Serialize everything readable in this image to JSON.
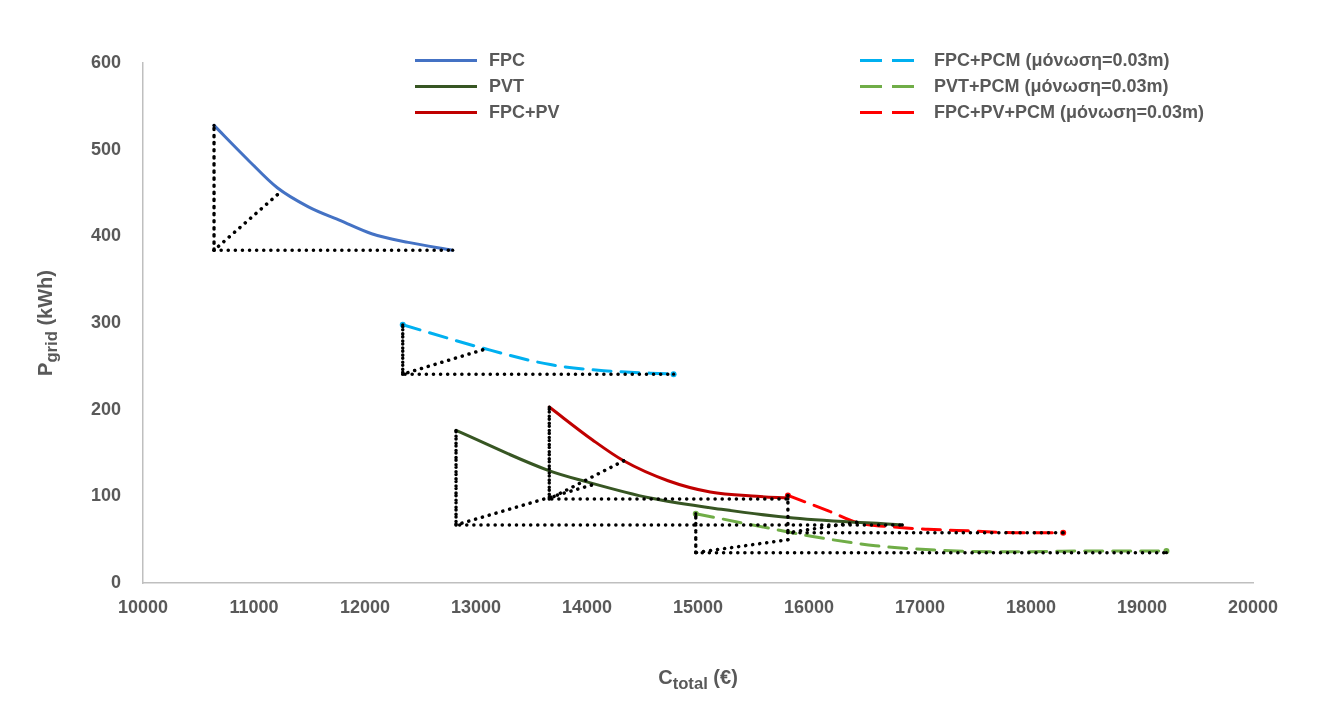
{
  "chart_data": {
    "type": "line",
    "xlabel": "C$_{total}$ (€)",
    "ylabel": "P$_{grid}$ (kWh)",
    "xlim": [
      10000,
      20000
    ],
    "xticks": [
      10000,
      11000,
      12000,
      13000,
      14000,
      15000,
      16000,
      17000,
      18000,
      19000,
      20000
    ],
    "ylim": [
      0,
      600
    ],
    "yticks": [
      0,
      100,
      200,
      300,
      400,
      500,
      600
    ],
    "grid": false,
    "legend": "top",
    "series": [
      {
        "name": "FPC",
        "color": "#4472c4",
        "line_style": "solid",
        "x": [
          10640,
          10940,
          11210,
          11490,
          11780,
          12060,
          12390,
          12790
        ],
        "values": [
          528,
          489,
          456,
          434,
          418,
          403,
          393,
          384
        ]
      },
      {
        "name": "PVT",
        "color": "#375623",
        "line_style": "solid",
        "x": [
          12820,
          13650,
          13990,
          14570,
          15210,
          15860,
          16840
        ],
        "values": [
          176,
          130,
          117,
          98,
          85,
          75,
          67
        ]
      },
      {
        "name": "FPC+PV",
        "color": "#c00000",
        "line_style": "solid",
        "x": [
          13660,
          14050,
          14330,
          14730,
          15110,
          15530,
          15810
        ],
        "values": [
          203,
          165,
          141,
          118,
          105,
          100,
          98
        ]
      },
      {
        "name": "FPC+PCM (μόνωση=0.03m)",
        "color": "#00b0f0",
        "line_style": "dashed",
        "x": [
          12340,
          13060,
          13670,
          14150,
          14780
        ],
        "values": [
          298,
          271,
          252,
          245,
          241
        ]
      },
      {
        "name": "PVT+PCM (μόνωση=0.03m)",
        "color": "#70ad47",
        "line_style": "dashed",
        "x": [
          14980,
          15530,
          16020,
          16600,
          17150,
          17720,
          18620,
          19220
        ],
        "values": [
          80,
          66,
          54,
          43,
          38,
          36,
          37,
          37
        ]
      },
      {
        "name": "FPC+PV+PCM (μόνωση=0.03m)",
        "color": "#ff0000",
        "line_style": "dashed",
        "x": [
          15810,
          16180,
          16430,
          16820,
          17070,
          17470,
          17860,
          18290
        ],
        "values": [
          101,
          83,
          70,
          64,
          62,
          60,
          58,
          58
        ]
      },
      {
        "color": "#000000",
        "line_style": "dotted",
        "x": [
          11210,
          10640,
          10640,
          10640,
          12790
        ],
        "values": [
          448,
          384,
          528,
          384,
          384
        ]
      },
      {
        "color": "#000000",
        "line_style": "dotted",
        "x": [
          13060,
          12340,
          12340,
          12340,
          14780
        ],
        "values": [
          269,
          241,
          298,
          241,
          241
        ]
      },
      {
        "color": "#000000",
        "line_style": "dotted",
        "x": [
          14040,
          12820,
          12820,
          12820,
          16840
        ],
        "values": [
          113,
          67,
          176,
          67,
          67
        ]
      },
      {
        "color": "#000000",
        "line_style": "dotted",
        "x": [
          14330,
          13660,
          13660,
          13660,
          15810
        ],
        "values": [
          141,
          97,
          203,
          97,
          97
        ]
      },
      {
        "color": "#000000",
        "line_style": "dotted",
        "x": [
          16430,
          15810,
          15810,
          15810,
          18290
        ],
        "values": [
          70,
          58,
          101,
          58,
          58
        ]
      },
      {
        "color": "#000000",
        "line_style": "dotted",
        "x": [
          15810,
          14980,
          14980,
          14980,
          19220
        ],
        "values": [
          50,
          35,
          80,
          35,
          35
        ]
      }
    ]
  }
}
